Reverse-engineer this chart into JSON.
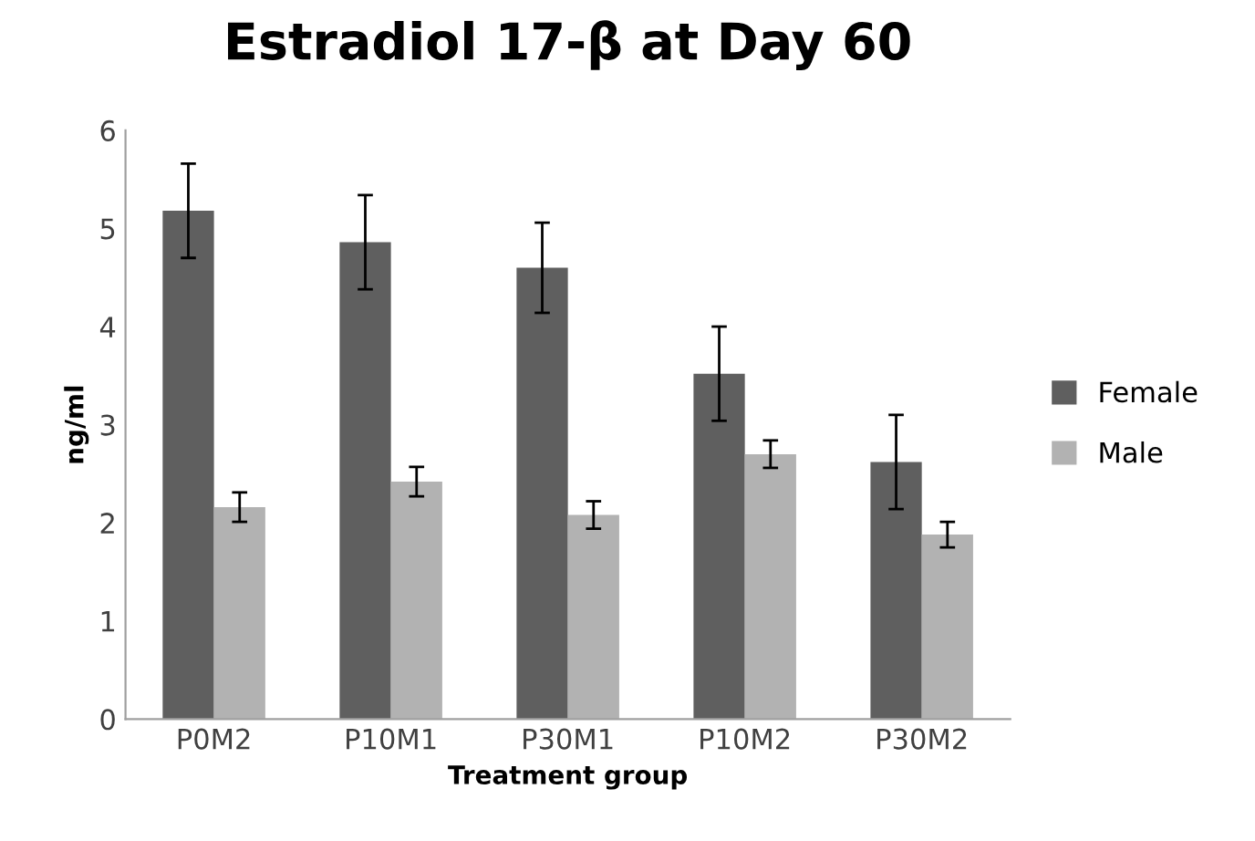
{
  "chart_data": {
    "type": "bar",
    "title": "Estradiol 17-β at Day 60",
    "xlabel": "Treatment group",
    "ylabel": "ng/ml",
    "categories": [
      "P0M2",
      "P10M1",
      "P30M1",
      "P10M2",
      "P30M2"
    ],
    "series": [
      {
        "name": "Female",
        "color": "#5f5f5f",
        "values": [
          5.18,
          4.86,
          4.6,
          3.52,
          2.62
        ],
        "errors": [
          0.48,
          0.48,
          0.46,
          0.48,
          0.48
        ]
      },
      {
        "name": "Male",
        "color": "#b2b2b2",
        "values": [
          2.16,
          2.42,
          2.08,
          2.7,
          1.88
        ],
        "errors": [
          0.15,
          0.15,
          0.14,
          0.14,
          0.13
        ]
      }
    ],
    "ylim": [
      0,
      6
    ],
    "yticks": [
      0,
      1,
      2,
      3,
      4,
      5,
      6
    ],
    "grid": false,
    "legend": "right"
  }
}
